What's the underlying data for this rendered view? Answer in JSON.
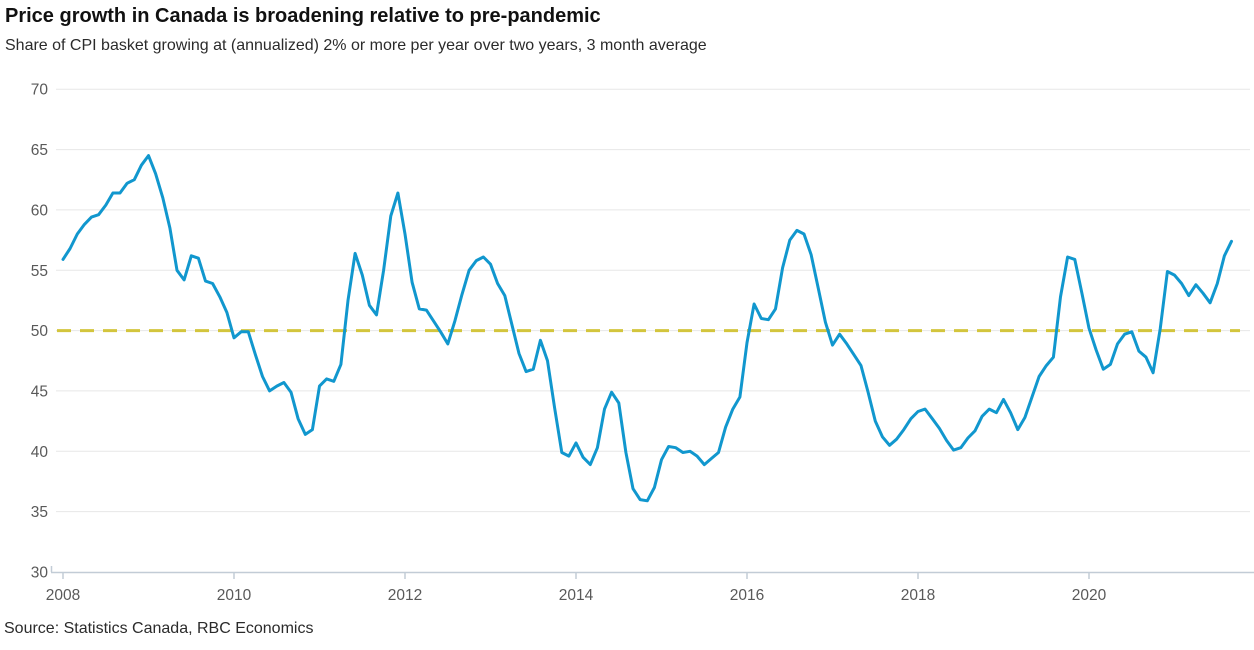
{
  "header": {
    "title": "Price growth in Canada is broadening relative to pre-pandemic",
    "subtitle": "Share of CPI basket growing at (annualized) 2% or more per year over two years, 3 month average"
  },
  "footer": {
    "source": "Source: Statistics Canada, RBC Economics"
  },
  "colors": {
    "line": "#1197ce",
    "benchmark": "#d3c53d",
    "gridline": "#e7e7e7",
    "axis": "#c2ccd6",
    "axis_label": "#595959"
  },
  "chart_data": {
    "type": "line",
    "title": "Price growth in Canada is broadening relative to pre-pandemic",
    "subtitle": "Share of CPI basket growing at (annualized) 2% or more per year over two years, 3 month average",
    "xlabel": "",
    "ylabel": "",
    "ylim": [
      30,
      70
    ],
    "y_ticks": [
      30,
      35,
      40,
      45,
      50,
      55,
      60,
      65,
      70
    ],
    "x_tick_labels": [
      "2008",
      "2010",
      "2012",
      "2014",
      "2016",
      "2018",
      "2020"
    ],
    "x_range": [
      2008.0,
      2021.75
    ],
    "grid": "horizontal",
    "legend": "none",
    "benchmark_line": {
      "value": 50,
      "style": "dashed"
    },
    "series": [
      {
        "name": "Share of CPI basket growing at 2% or more (3 month average)",
        "start": "2008-01",
        "frequency": "monthly",
        "values": [
          55.9,
          56.8,
          58.0,
          58.8,
          59.4,
          59.6,
          60.4,
          61.4,
          61.4,
          62.2,
          62.5,
          63.7,
          64.5,
          63.0,
          61.0,
          58.5,
          55.0,
          54.2,
          56.2,
          56.0,
          54.1,
          53.9,
          52.8,
          51.5,
          49.4,
          49.9,
          49.9,
          48.0,
          46.2,
          45.0,
          45.4,
          45.7,
          44.9,
          42.7,
          41.4,
          41.8,
          45.4,
          46.0,
          45.8,
          47.2,
          52.5,
          56.4,
          54.6,
          52.1,
          51.3,
          55.0,
          59.5,
          61.4,
          58.0,
          54.0,
          51.8,
          51.7,
          50.8,
          49.9,
          48.9,
          50.8,
          53.0,
          55.0,
          55.8,
          56.1,
          55.5,
          53.9,
          52.9,
          50.5,
          48.1,
          46.6,
          46.8,
          49.2,
          47.5,
          43.6,
          39.9,
          39.6,
          40.7,
          39.5,
          38.9,
          40.3,
          43.5,
          44.9,
          44.0,
          39.9,
          36.9,
          36.0,
          35.9,
          37.0,
          39.3,
          40.4,
          40.3,
          39.9,
          40.0,
          39.6,
          38.9,
          39.4,
          39.9,
          42.0,
          43.5,
          44.5,
          49.0,
          52.2,
          51.0,
          50.9,
          51.8,
          55.2,
          57.5,
          58.3,
          58.0,
          56.3,
          53.5,
          50.7,
          48.8,
          49.7,
          48.9,
          48.0,
          47.1,
          44.9,
          42.5,
          41.2,
          40.5,
          41.0,
          41.8,
          42.7,
          43.3,
          43.5,
          42.7,
          41.9,
          40.9,
          40.1,
          40.3,
          41.1,
          41.7,
          42.9,
          43.5,
          43.2,
          44.3,
          43.2,
          41.8,
          42.8,
          44.5,
          46.2,
          47.1,
          47.8,
          52.8,
          56.1,
          55.9,
          53.1,
          50.2,
          48.4,
          46.8,
          47.2,
          48.9,
          49.7,
          49.9,
          48.3,
          47.8,
          46.5,
          50.2,
          54.9,
          54.6,
          53.9,
          52.9,
          53.8,
          53.1,
          52.3,
          53.9,
          56.2,
          57.4
        ]
      }
    ]
  }
}
